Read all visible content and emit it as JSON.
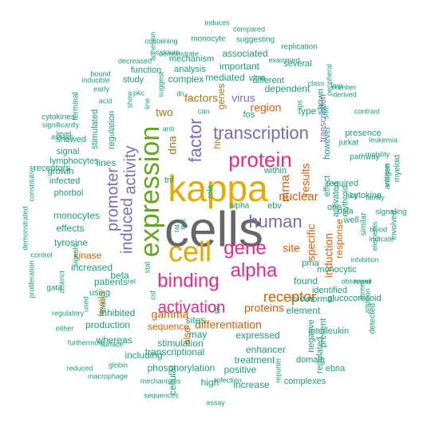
{
  "colors": {
    "teal": "#1b9e77",
    "orange": "#d95f02",
    "purple": "#7570b3",
    "pink": "#e7298a",
    "green": "#66a61e",
    "gold": "#e6ab02",
    "brown": "#a6761d",
    "gray": "#666666"
  },
  "words": [
    {
      "text": "cells",
      "color": "gray"
    },
    {
      "text": "kappa",
      "color": "gold"
    },
    {
      "text": "cell",
      "color": "gold"
    },
    {
      "text": "expression",
      "color": "green"
    },
    {
      "text": "protein",
      "color": "pink"
    },
    {
      "text": "binding",
      "color": "pink"
    },
    {
      "text": "transcription",
      "color": "purple"
    },
    {
      "text": "alpha",
      "color": "pink"
    },
    {
      "text": "gene",
      "color": "pink"
    },
    {
      "text": "human",
      "color": "purple"
    },
    {
      "text": "activation",
      "color": "pink"
    },
    {
      "text": "factor",
      "color": "purple"
    },
    {
      "text": "promoter",
      "color": "purple"
    },
    {
      "text": "activity",
      "color": "purple"
    },
    {
      "text": "induced",
      "color": "purple"
    },
    {
      "text": "receptor",
      "color": "orange"
    },
    {
      "text": "nuclear",
      "color": "orange"
    },
    {
      "text": "mrna",
      "color": "orange"
    },
    {
      "text": "site",
      "color": "orange"
    },
    {
      "text": "specific",
      "color": "orange"
    },
    {
      "text": "induction",
      "color": "orange"
    },
    {
      "text": "factors",
      "color": "brown"
    },
    {
      "text": "dna",
      "color": "brown"
    },
    {
      "text": "two",
      "color": "brown"
    },
    {
      "text": "virus",
      "color": "purple"
    },
    {
      "text": "mediated",
      "color": "teal"
    },
    {
      "text": "dependent",
      "color": "teal"
    },
    {
      "text": "region",
      "color": "orange"
    },
    {
      "text": "results",
      "color": "orange"
    },
    {
      "text": "response",
      "color": "orange"
    },
    {
      "text": "genes",
      "color": "brown"
    },
    {
      "text": "hiv",
      "color": "brown"
    },
    {
      "text": "proteins",
      "color": "orange"
    },
    {
      "text": "differentiation",
      "color": "orange"
    },
    {
      "text": "gamma",
      "color": "orange"
    },
    {
      "text": "sequence",
      "color": "orange"
    },
    {
      "text": "kinase",
      "color": "orange"
    },
    {
      "text": "levels",
      "color": "orange"
    },
    {
      "text": "also",
      "color": "orange"
    },
    {
      "text": "sites",
      "color": "teal"
    },
    {
      "text": "stimulation",
      "color": "teal"
    },
    {
      "text": "transcriptional",
      "color": "teal"
    },
    {
      "text": "phosphorylation",
      "color": "teal"
    },
    {
      "text": "expressed",
      "color": "teal"
    },
    {
      "text": "element",
      "color": "teal"
    },
    {
      "text": "found",
      "color": "teal"
    },
    {
      "text": "may",
      "color": "teal"
    },
    {
      "text": "effects",
      "color": "teal"
    },
    {
      "text": "monocytes",
      "color": "teal"
    },
    {
      "text": "tyrosine",
      "color": "teal"
    },
    {
      "text": "lines",
      "color": "teal"
    },
    {
      "text": "complex",
      "color": "teal"
    },
    {
      "text": "patients",
      "color": "teal"
    },
    {
      "text": "increased",
      "color": "teal"
    },
    {
      "text": "beta",
      "color": "teal"
    },
    {
      "text": "enhancer",
      "color": "teal"
    },
    {
      "text": "treatment",
      "color": "teal"
    },
    {
      "text": "positive",
      "color": "teal"
    },
    {
      "text": "increase",
      "color": "teal"
    },
    {
      "text": "high",
      "color": "teal"
    },
    {
      "text": "cellular",
      "color": "teal"
    },
    {
      "text": "including",
      "color": "teal"
    },
    {
      "text": "whereas",
      "color": "teal"
    },
    {
      "text": "production",
      "color": "teal"
    },
    {
      "text": "inhibited",
      "color": "teal"
    },
    {
      "text": "using",
      "color": "teal"
    },
    {
      "text": "studies",
      "color": "teal"
    },
    {
      "text": "interleukin",
      "color": "teal"
    },
    {
      "text": "pma",
      "color": "teal"
    },
    {
      "text": "ebv",
      "color": "teal"
    },
    {
      "text": "within",
      "color": "teal"
    },
    {
      "text": "normal",
      "color": "teal"
    },
    {
      "text": "effect",
      "color": "teal"
    },
    {
      "text": "activated",
      "color": "teal"
    },
    {
      "text": "required",
      "color": "teal"
    },
    {
      "text": "cytokine",
      "color": "teal"
    },
    {
      "text": "well",
      "color": "teal"
    },
    {
      "text": "one",
      "color": "teal"
    },
    {
      "text": "type",
      "color": "teal"
    },
    {
      "text": "important",
      "color": "teal"
    },
    {
      "text": "associated",
      "color": "teal"
    },
    {
      "text": "mechanism",
      "color": "teal"
    },
    {
      "text": "analysis",
      "color": "teal"
    },
    {
      "text": "function",
      "color": "teal"
    },
    {
      "text": "study",
      "color": "teal"
    },
    {
      "text": "regulation",
      "color": "teal"
    },
    {
      "text": "signal",
      "color": "teal"
    },
    {
      "text": "showed",
      "color": "teal"
    },
    {
      "text": "growth",
      "color": "teal"
    },
    {
      "text": "infected",
      "color": "teal"
    },
    {
      "text": "phorbol",
      "color": "teal"
    },
    {
      "text": "receptors",
      "color": "teal"
    },
    {
      "text": "lymphocytes",
      "color": "teal"
    },
    {
      "text": "stimulated",
      "color": "teal"
    },
    {
      "text": "tnf",
      "color": "teal"
    },
    {
      "text": "role",
      "color": "teal"
    },
    {
      "text": "fos",
      "color": "teal"
    },
    {
      "text": "vitro",
      "color": "teal"
    },
    {
      "text": "different",
      "color": "teal"
    },
    {
      "text": "several",
      "color": "teal"
    },
    {
      "text": "jurkat",
      "color": "teal"
    },
    {
      "text": "however",
      "color": "teal"
    },
    {
      "text": "shown",
      "color": "teal"
    },
    {
      "text": "presence",
      "color": "teal"
    },
    {
      "text": "pathway",
      "color": "teal"
    },
    {
      "text": "monocytic",
      "color": "teal"
    },
    {
      "text": "identified",
      "color": "teal"
    },
    {
      "text": "present",
      "color": "teal"
    },
    {
      "text": "negative",
      "color": "teal"
    },
    {
      "text": "domain",
      "color": "teal"
    },
    {
      "text": "ebna",
      "color": "teal"
    },
    {
      "text": "complexes",
      "color": "teal"
    },
    {
      "text": "regulated",
      "color": "teal"
    },
    {
      "text": "glucocorticoid",
      "color": "teal"
    },
    {
      "text": "transcription",
      "color": "purple"
    }
  ],
  "small_words": [
    "induces",
    "compared",
    "monocyte",
    "peripheral",
    "adhesion",
    "containing",
    "suggesting",
    "replication",
    "calcium",
    "demonstrate",
    "examined",
    "decreased",
    "class",
    "lmp",
    "bound",
    "suggest",
    "inducible",
    "number",
    "early",
    "pkc",
    "ifn",
    "derived",
    "acid",
    "show",
    "line",
    "ips",
    "contrast",
    "terminal",
    "shift",
    "cytokines",
    "significantly",
    "anti",
    "can",
    "leukemia",
    "level",
    "mobility",
    "assays",
    "various",
    "myeloid",
    "antigen",
    "constitutive",
    "family",
    "like",
    "signaling",
    "demonstrated",
    "erythroid",
    "data",
    "involved",
    "control",
    "similar",
    "blood",
    "indicate",
    "tat",
    "oct",
    "stat",
    "rel",
    "csf",
    "tal",
    "inhibition",
    "observed",
    "tumor",
    "proliferation",
    "signals",
    "three",
    "addition",
    "distinct",
    "elements",
    "gata",
    "used",
    "trans",
    "detected",
    "regulatory",
    "either",
    "furthermore",
    "surface",
    "globin",
    "reporter",
    "reduced",
    "macrophage",
    "mechanisms",
    "sequences",
    "infection",
    "assay",
    "alpha"
  ]
}
